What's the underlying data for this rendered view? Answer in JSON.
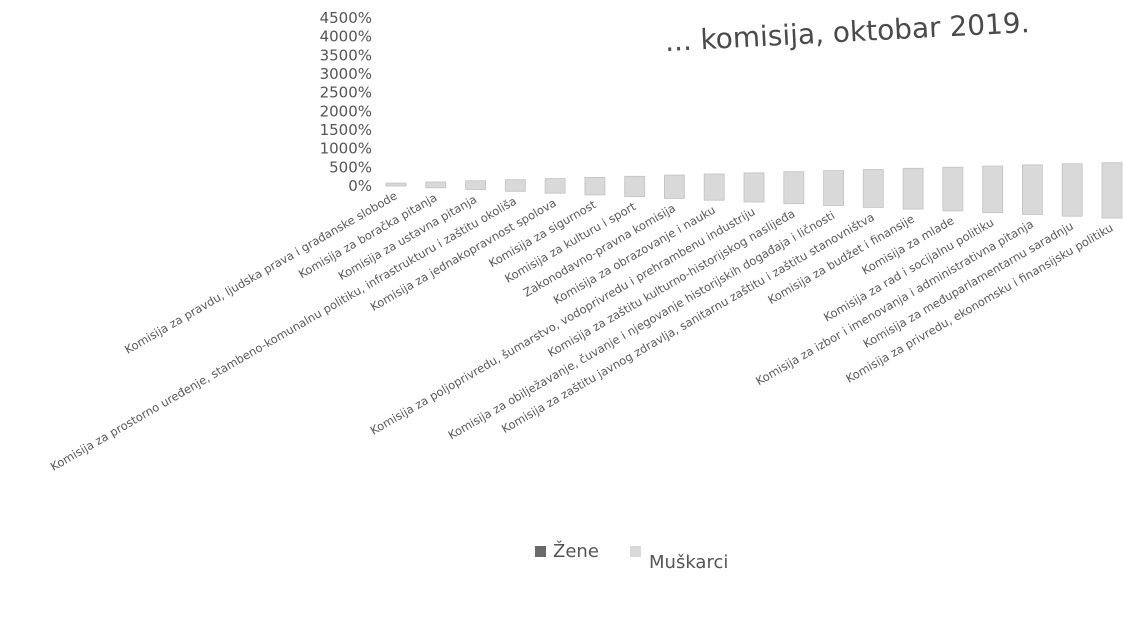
{
  "chart_data": {
    "type": "bar",
    "title": "... komisija, oktobar 2019.",
    "xlabel": "",
    "ylabel": "",
    "ylim": [
      0,
      4500
    ],
    "yticks": [
      "0%",
      "500%",
      "1000%",
      "1500%",
      "2000%",
      "2500%",
      "3000%",
      "3500%",
      "4000%",
      "4500%"
    ],
    "categories": [
      "Komisija za pravdu, ljudska prava i građanske slobode",
      "Komisija za boračka pitanja",
      "Komisija za ustavna pitanja",
      "Komisija za prostorno uređenje, stambeno-komunalnu politiku, infrastrukturu i zaštitu okoliša",
      "Komisija za jednakopravnost spolova",
      "Komisija za sigurnost",
      "Komisija za kulturu i sport",
      "Zakonodavno-pravna komisija",
      "Komisija za obrazovanje i nauku",
      "Komisija za poljoprivredu, šumarstvo, vodoprivredu i prehrambenu industriju",
      "Komisija za zaštitu kulturno-historijskog naslijeđa",
      "Komisija za obilježavanje, čuvanje i njegovanje historijskih događaja i ličnosti",
      "Komisija za zaštitu javnog zdravlja, sanitarnu zaštitu i zaštitu stanovništva",
      "Komisija za budžet i finansije",
      "Komisija za mlade",
      "Komisija za rad i socijalnu politiku",
      "Komisija za izbor i imenovanja i administrativna pitanja",
      "Komisija za međuparlamentarnu saradnju",
      "Komisija za privredu, ekonomsku i finansijsku politiku"
    ],
    "series": [
      {
        "name": "Žene",
        "values": [
          0,
          0,
          0,
          0,
          0,
          0,
          0,
          0,
          0,
          0,
          0,
          0,
          0,
          0,
          0,
          0,
          0,
          0,
          0
        ]
      },
      {
        "name": "Muškarci",
        "values": [
          100,
          200,
          300,
          400,
          500,
          600,
          700,
          800,
          900,
          1000,
          1100,
          1200,
          1300,
          1400,
          1500,
          1600,
          1700,
          1800,
          1900
        ]
      }
    ],
    "colors": {
      "zene": "#6a6a6a",
      "muskarci": "#d9d9d9",
      "bar_edge": "#c2c2c2"
    },
    "grid": false,
    "legend_position": "bottom"
  }
}
